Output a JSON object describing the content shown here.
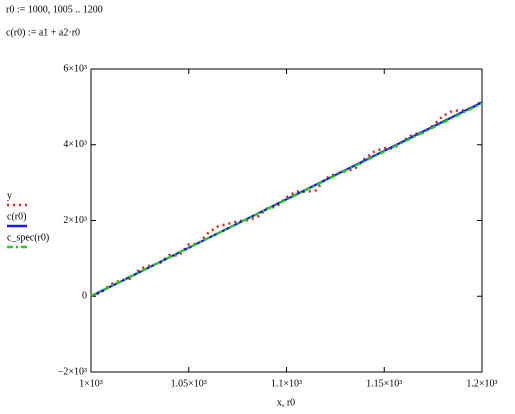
{
  "worksheet": {
    "lines": [
      "r0 := 1000, 1005 .. 1200",
      "c(r0) := a1 + a2·r0"
    ]
  },
  "chart_data": {
    "type": "line",
    "x_label": "x, r0",
    "x": [
      1000,
      1005,
      1010,
      1015,
      1020,
      1025,
      1030,
      1035,
      1040,
      1045,
      1050,
      1055,
      1060,
      1065,
      1070,
      1075,
      1080,
      1085,
      1090,
      1095,
      1100,
      1105,
      1110,
      1115,
      1120,
      1125,
      1130,
      1135,
      1140,
      1145,
      1150,
      1155,
      1160,
      1165,
      1170,
      1175,
      1180,
      1185,
      1190,
      1195,
      1200
    ],
    "series": [
      {
        "name": "y",
        "color": "#e02020",
        "style": "dotted",
        "values": [
          20,
          88,
          316,
          414,
          462,
          720,
          808,
          866,
          1084,
          1072,
          1370,
          1388,
          1676,
          1844,
          1912,
          1980,
          2008,
          2086,
          2314,
          2372,
          2610,
          2768,
          2756,
          2794,
          3112,
          3230,
          3298,
          3366,
          3634,
          3822,
          3910,
          3908,
          4116,
          4284,
          4312,
          4510,
          4758,
          4896,
          4904,
          4972,
          5150
        ]
      },
      {
        "name": "c(r0)",
        "color": "#1a1ae0",
        "style": "solid",
        "values": [
          0,
          128,
          256,
          384,
          512,
          640,
          768,
          896,
          1024,
          1152,
          1280,
          1408,
          1536,
          1664,
          1792,
          1920,
          2048,
          2176,
          2304,
          2432,
          2560,
          2688,
          2816,
          2944,
          3072,
          3200,
          3328,
          3456,
          3584,
          3712,
          3840,
          3968,
          4096,
          4224,
          4352,
          4480,
          4608,
          4736,
          4864,
          4992,
          5120
        ]
      },
      {
        "name": "c_spec(r0)",
        "color": "#22cc22",
        "style": "dashdot",
        "values": [
          10,
          137,
          264,
          391,
          518,
          645,
          772,
          899,
          1026,
          1153,
          1280,
          1407,
          1534,
          1661,
          1788,
          1915,
          2042,
          2169,
          2296,
          2423,
          2550,
          2677,
          2804,
          2931,
          3058,
          3185,
          3312,
          3439,
          3566,
          3693,
          3820,
          3947,
          4074,
          4201,
          4328,
          4455,
          4582,
          4709,
          4836,
          4963,
          5090
        ]
      }
    ],
    "xlim": [
      1000,
      1200
    ],
    "ylim": [
      -2000,
      6000
    ],
    "xticks": [
      {
        "value": 1000,
        "label": "1×10³"
      },
      {
        "value": 1050,
        "label": "1.05×10³"
      },
      {
        "value": 1100,
        "label": "1.1×10³"
      },
      {
        "value": 1150,
        "label": "1.15×10³"
      },
      {
        "value": 1200,
        "label": "1.2×10³"
      }
    ],
    "yticks": [
      {
        "value": -2000,
        "label": "−2×10³"
      },
      0,
      {
        "value": 2000,
        "label": "2×10³"
      },
      {
        "value": 4000,
        "label": "4×10³"
      },
      {
        "value": 6000,
        "label": "6×10³"
      }
    ],
    "legend": "left"
  }
}
